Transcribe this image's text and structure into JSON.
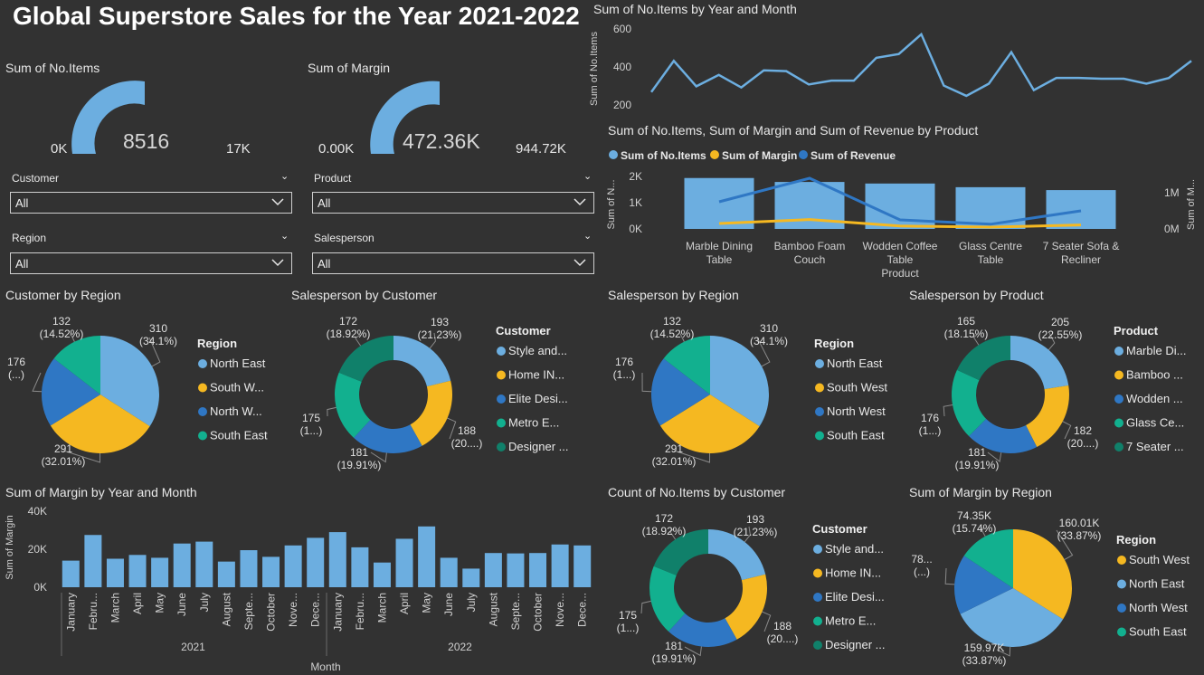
{
  "title": "Global Superstore Sales for the Year 2021-2022",
  "colors": {
    "light_blue": "#6CAEE0",
    "gold": "#F5B821",
    "blue": "#2F77C4",
    "teal": "#12B08F",
    "dark_teal": "#10806A",
    "gray_bg": "#595959"
  },
  "gauges": [
    {
      "title": "Sum of No.Items",
      "value_label": "8516",
      "min_label": "0K",
      "max_label": "17K",
      "fraction": 0.501
    },
    {
      "title": "Sum of Margin",
      "value_label": "472.36K",
      "min_label": "0.00K",
      "max_label": "944.72K",
      "fraction": 0.5
    }
  ],
  "slicers": [
    {
      "label": "Customer",
      "value": "All"
    },
    {
      "label": "Product",
      "value": "All"
    },
    {
      "label": "Region",
      "value": "All"
    },
    {
      "label": "Salesperson",
      "value": "All"
    }
  ],
  "chart_data": [
    {
      "id": "items_by_month",
      "type": "line",
      "title": "Sum of No.Items by Year and Month",
      "ylabel": "Sum of No.Items",
      "ylim": [
        200,
        620
      ],
      "yticks": [
        "600",
        "400",
        "200"
      ],
      "values": [
        268,
        432,
        298,
        358,
        292,
        382,
        378,
        308,
        328,
        328,
        448,
        468,
        572,
        302,
        248,
        312,
        478,
        278,
        342,
        342,
        338,
        338,
        312,
        342,
        432
      ]
    },
    {
      "id": "product_combo",
      "type": "bar",
      "title": "Sum of No.Items, Sum of Margin and Sum of Revenue by Product",
      "xlabel": "Product",
      "ylabel": "Sum of N...",
      "y2label": "Sum of M...",
      "categories": [
        "Marble Dining Table",
        "Bamboo Foam Couch",
        "Wodden Coffee Table",
        "Glass Centre Table",
        "7 Seater Sofa & Recliner"
      ],
      "yticks": [
        "2K",
        "1K",
        "0K"
      ],
      "y2ticks": [
        "1M",
        "0M"
      ],
      "series": [
        {
          "name": "Sum of No.Items",
          "values": [
            1940,
            1790,
            1730,
            1590,
            1480
          ]
        },
        {
          "name": "Sum of Margin",
          "values": [
            0.15,
            0.26,
            0.08,
            0.05,
            0.11
          ]
        },
        {
          "name": "Sum of Revenue",
          "values": [
            0.75,
            1.4,
            0.25,
            0.13,
            0.5
          ]
        }
      ]
    },
    {
      "id": "customer_by_region",
      "type": "pie",
      "title": "Customer by Region",
      "legend_title": "Region",
      "legend": [
        "North East",
        "South W...",
        "North W...",
        "South East"
      ],
      "values": [
        310,
        291,
        176,
        132
      ],
      "labels": [
        [
          "310",
          "(34.1%)"
        ],
        [
          "291",
          "(32.01%)"
        ],
        [
          "176",
          "(...)"
        ],
        [
          "132",
          "(14.52%)"
        ]
      ]
    },
    {
      "id": "salesperson_by_customer",
      "type": "pie",
      "donut": true,
      "title": "Salesperson by Customer",
      "legend_title": "Customer",
      "legend": [
        "Style and...",
        "Home IN...",
        "Elite Desi...",
        "Metro E...",
        "Designer ..."
      ],
      "values": [
        193,
        188,
        181,
        175,
        172
      ],
      "labels": [
        [
          "193",
          "(21.23%)"
        ],
        [
          "188",
          "(20....)"
        ],
        [
          "181",
          "(19.91%)"
        ],
        [
          "175",
          "(1...)"
        ],
        [
          "172",
          "(18.92%)"
        ]
      ]
    },
    {
      "id": "salesperson_by_region",
      "type": "pie",
      "title": "Salesperson by Region",
      "legend_title": "Region",
      "legend": [
        "North East",
        "South West",
        "North West",
        "South East"
      ],
      "values": [
        310,
        291,
        176,
        132
      ],
      "labels": [
        [
          "310",
          "(34.1%)"
        ],
        [
          "291",
          "(32.01%)"
        ],
        [
          "176",
          "(1...)"
        ],
        [
          "132",
          "(14.52%)"
        ]
      ]
    },
    {
      "id": "salesperson_by_product",
      "type": "pie",
      "donut": true,
      "title": "Salesperson by Product",
      "legend_title": "Product",
      "legend": [
        "Marble Di...",
        "Bamboo ...",
        "Wodden ...",
        "Glass Ce...",
        "7 Seater ..."
      ],
      "values": [
        205,
        182,
        181,
        176,
        165
      ],
      "labels": [
        [
          "205",
          "(22.55%)"
        ],
        [
          "182",
          "(20....)"
        ],
        [
          "181",
          "(19.91%)"
        ],
        [
          "176",
          "(1...)"
        ],
        [
          "165",
          "(18.15%)"
        ]
      ]
    },
    {
      "id": "margin_by_month",
      "type": "bar",
      "title": "Sum of Margin by Year and Month",
      "xlabel": "Month",
      "ylabel": "Sum of Margin",
      "ylim": [
        0,
        40000
      ],
      "yticks": [
        "40K",
        "20K",
        "0K"
      ],
      "categories": [
        "January",
        "Febru...",
        "March",
        "April",
        "May",
        "June",
        "July",
        "August",
        "Septe...",
        "October",
        "Nove...",
        "Dece...",
        "January",
        "Febru...",
        "March",
        "April",
        "May",
        "June",
        "July",
        "August",
        "Septe...",
        "October",
        "Nove...",
        "Dece..."
      ],
      "years": [
        "2021",
        "2022"
      ],
      "values": [
        14000,
        27500,
        15000,
        17000,
        15500,
        23000,
        24000,
        13500,
        19500,
        16000,
        22000,
        26000,
        29000,
        21000,
        13000,
        25500,
        32000,
        15500,
        9800,
        18000,
        17800,
        18000,
        22500,
        22000
      ]
    },
    {
      "id": "items_by_customer",
      "type": "pie",
      "donut": true,
      "title": "Count of No.Items by Customer",
      "legend_title": "Customer",
      "legend": [
        "Style and...",
        "Home IN...",
        "Elite Desi...",
        "Metro E...",
        "Designer ..."
      ],
      "values": [
        193,
        188,
        181,
        175,
        172
      ],
      "labels": [
        [
          "193",
          "(21.23%)"
        ],
        [
          "188",
          "(20....)"
        ],
        [
          "181",
          "(19.91%)"
        ],
        [
          "175",
          "(1...)"
        ],
        [
          "172",
          "(18.92%)"
        ]
      ]
    },
    {
      "id": "margin_by_region",
      "type": "pie",
      "title": "Sum of Margin by Region",
      "legend_title": "Region",
      "legend": [
        "South West",
        "North East",
        "North West",
        "South East"
      ],
      "values": [
        160.01,
        159.97,
        78.03,
        74.35
      ],
      "labels": [
        [
          "160.01K",
          "(33.87%)"
        ],
        [
          "159.97K",
          "(33.87%)"
        ],
        [
          "78...",
          "(...)"
        ],
        [
          "74.35K",
          "(15.74%)"
        ]
      ]
    }
  ]
}
